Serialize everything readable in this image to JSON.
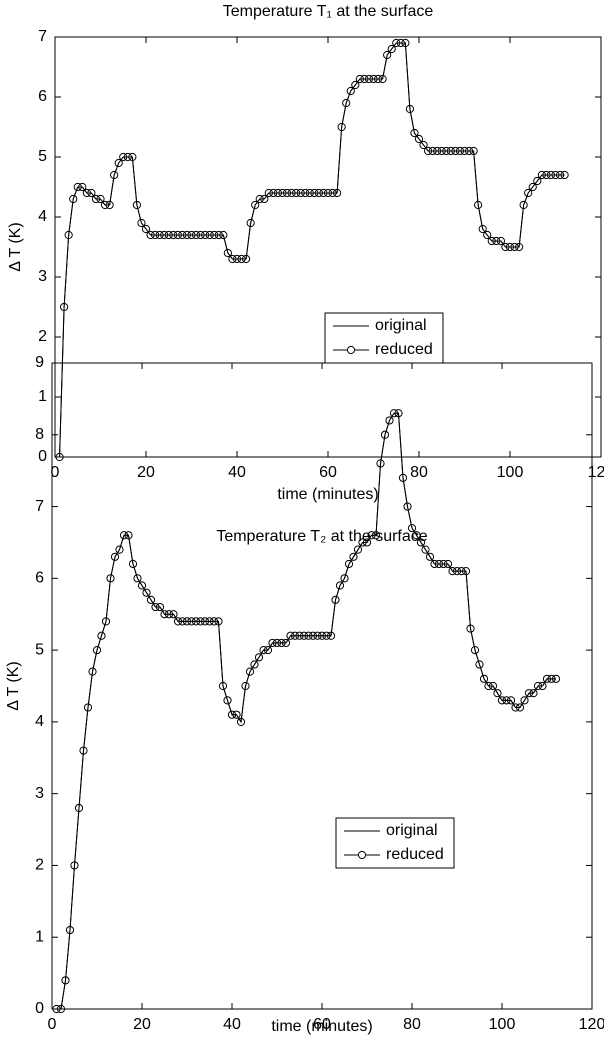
{
  "chart_data": [
    {
      "type": "line",
      "title": "Temperature T₁ at the surface",
      "x_label": "time (minutes)",
      "y_label": "Δ T (K)",
      "xlim": [
        0,
        120
      ],
      "xticks": [
        0,
        20,
        40,
        60,
        80,
        100,
        120
      ],
      "ylim": [
        0,
        7
      ],
      "yticks": [
        0,
        1,
        2,
        3,
        4,
        5,
        6,
        7
      ],
      "grid": false,
      "x": [
        1,
        2,
        3,
        4,
        5,
        6,
        7,
        8,
        9,
        10,
        11,
        12,
        13,
        14,
        15,
        16,
        17,
        18,
        19,
        20,
        21,
        22,
        23,
        24,
        25,
        26,
        27,
        28,
        29,
        30,
        31,
        32,
        33,
        34,
        35,
        36,
        37,
        38,
        39,
        40,
        41,
        42,
        43,
        44,
        45,
        46,
        47,
        48,
        49,
        50,
        51,
        52,
        53,
        54,
        55,
        56,
        57,
        58,
        59,
        60,
        61,
        62,
        63,
        64,
        65,
        66,
        67,
        68,
        69,
        70,
        71,
        72,
        73,
        74,
        75,
        76,
        77,
        78,
        79,
        80,
        81,
        82,
        83,
        84,
        85,
        86,
        87,
        88,
        89,
        90,
        91,
        92,
        93,
        94,
        95,
        96,
        97,
        98,
        99,
        100,
        101,
        102,
        103,
        104,
        105,
        106,
        107,
        108,
        109,
        110,
        111,
        112
      ],
      "series": [
        {
          "name": "original",
          "color": "#000000",
          "values": [
            0,
            2.5,
            3.7,
            4.3,
            4.5,
            4.5,
            4.4,
            4.4,
            4.3,
            4.3,
            4.2,
            4.2,
            4.7,
            4.9,
            5,
            5,
            5,
            4.2,
            3.9,
            3.8,
            3.7,
            3.7,
            3.7,
            3.7,
            3.7,
            3.7,
            3.7,
            3.7,
            3.7,
            3.7,
            3.7,
            3.7,
            3.7,
            3.7,
            3.7,
            3.7,
            3.7,
            3.4,
            3.3,
            3.3,
            3.3,
            3.3,
            3.9,
            4.2,
            4.3,
            4.3,
            4.4,
            4.4,
            4.4,
            4.4,
            4.4,
            4.4,
            4.4,
            4.4,
            4.4,
            4.4,
            4.4,
            4.4,
            4.4,
            4.4,
            4.4,
            4.4,
            5.5,
            5.9,
            6.1,
            6.2,
            6.3,
            6.3,
            6.3,
            6.3,
            6.3,
            6.3,
            6.7,
            6.8,
            6.9,
            6.9,
            6.9,
            5.8,
            5.4,
            5.3,
            5.2,
            5.1,
            5.1,
            5.1,
            5.1,
            5.1,
            5.1,
            5.1,
            5.1,
            5.1,
            5.1,
            5.1,
            4.2,
            3.8,
            3.7,
            3.6,
            3.6,
            3.6,
            3.5,
            3.5,
            3.5,
            3.5,
            4.2,
            4.4,
            4.5,
            4.6,
            4.7,
            4.7,
            4.7,
            4.7,
            4.7,
            4.7
          ]
        },
        {
          "name": "reduced",
          "color": "#000000",
          "marker": "o",
          "values": [
            0,
            2.5,
            3.7,
            4.3,
            4.5,
            4.5,
            4.4,
            4.4,
            4.3,
            4.3,
            4.2,
            4.2,
            4.7,
            4.9,
            5,
            5,
            5,
            4.2,
            3.9,
            3.8,
            3.7,
            3.7,
            3.7,
            3.7,
            3.7,
            3.7,
            3.7,
            3.7,
            3.7,
            3.7,
            3.7,
            3.7,
            3.7,
            3.7,
            3.7,
            3.7,
            3.7,
            3.4,
            3.3,
            3.3,
            3.3,
            3.3,
            3.9,
            4.2,
            4.3,
            4.3,
            4.4,
            4.4,
            4.4,
            4.4,
            4.4,
            4.4,
            4.4,
            4.4,
            4.4,
            4.4,
            4.4,
            4.4,
            4.4,
            4.4,
            4.4,
            4.4,
            5.5,
            5.9,
            6.1,
            6.2,
            6.3,
            6.3,
            6.3,
            6.3,
            6.3,
            6.3,
            6.7,
            6.8,
            6.9,
            6.9,
            6.9,
            5.8,
            5.4,
            5.3,
            5.2,
            5.1,
            5.1,
            5.1,
            5.1,
            5.1,
            5.1,
            5.1,
            5.1,
            5.1,
            5.1,
            5.1,
            4.2,
            3.8,
            3.7,
            3.6,
            3.6,
            3.6,
            3.5,
            3.5,
            3.5,
            3.5,
            4.2,
            4.4,
            4.5,
            4.6,
            4.7,
            4.7,
            4.7,
            4.7,
            4.7,
            4.7
          ]
        }
      ]
    },
    {
      "type": "line",
      "title": "Temperature T₂ at the surface",
      "x_label": "time (minutes)",
      "y_label": "Δ T (K)",
      "xlim": [
        0,
        120
      ],
      "xticks": [
        0,
        20,
        40,
        60,
        80,
        100,
        120
      ],
      "ylim": [
        0,
        9
      ],
      "yticks": [
        0,
        1,
        2,
        3,
        4,
        5,
        6,
        7,
        8,
        9
      ],
      "grid": false,
      "x": [
        1,
        2,
        3,
        4,
        5,
        6,
        7,
        8,
        9,
        10,
        11,
        12,
        13,
        14,
        15,
        16,
        17,
        18,
        19,
        20,
        21,
        22,
        23,
        24,
        25,
        26,
        27,
        28,
        29,
        30,
        31,
        32,
        33,
        34,
        35,
        36,
        37,
        38,
        39,
        40,
        41,
        42,
        43,
        44,
        45,
        46,
        47,
        48,
        49,
        50,
        51,
        52,
        53,
        54,
        55,
        56,
        57,
        58,
        59,
        60,
        61,
        62,
        63,
        64,
        65,
        66,
        67,
        68,
        69,
        70,
        71,
        72,
        73,
        74,
        75,
        76,
        77,
        78,
        79,
        80,
        81,
        82,
        83,
        84,
        85,
        86,
        87,
        88,
        89,
        90,
        91,
        92,
        93,
        94,
        95,
        96,
        97,
        98,
        99,
        100,
        101,
        102,
        103,
        104,
        105,
        106,
        107,
        108,
        109,
        110,
        111,
        112
      ],
      "series": [
        {
          "name": "original",
          "color": "#000000",
          "values": [
            0,
            0,
            0.4,
            1.1,
            2,
            2.8,
            3.6,
            4.2,
            4.7,
            5,
            5.2,
            5.4,
            6,
            6.3,
            6.4,
            6.6,
            6.6,
            6.2,
            6,
            5.9,
            5.8,
            5.7,
            5.6,
            5.6,
            5.5,
            5.5,
            5.5,
            5.4,
            5.4,
            5.4,
            5.4,
            5.4,
            5.4,
            5.4,
            5.4,
            5.4,
            5.4,
            4.5,
            4.3,
            4.1,
            4.1,
            4,
            4.5,
            4.7,
            4.8,
            4.9,
            5,
            5,
            5.1,
            5.1,
            5.1,
            5.1,
            5.2,
            5.2,
            5.2,
            5.2,
            5.2,
            5.2,
            5.2,
            5.2,
            5.2,
            5.2,
            5.7,
            5.9,
            6,
            6.2,
            6.3,
            6.4,
            6.5,
            6.5,
            6.6,
            6.6,
            7.6,
            8,
            8.2,
            8.3,
            8.3,
            7.4,
            7,
            6.7,
            6.6,
            6.5,
            6.4,
            6.3,
            6.2,
            6.2,
            6.2,
            6.2,
            6.1,
            6.1,
            6.1,
            6.1,
            5.3,
            5,
            4.8,
            4.6,
            4.5,
            4.5,
            4.4,
            4.3,
            4.3,
            4.3,
            4.2,
            4.2,
            4.3,
            4.4,
            4.4,
            4.5,
            4.5,
            4.6,
            4.6,
            4.6
          ]
        },
        {
          "name": "reduced",
          "color": "#000000",
          "marker": "o",
          "values": [
            0,
            0,
            0.4,
            1.1,
            2,
            2.8,
            3.6,
            4.2,
            4.7,
            5,
            5.2,
            5.4,
            6,
            6.3,
            6.4,
            6.6,
            6.6,
            6.2,
            6,
            5.9,
            5.8,
            5.7,
            5.6,
            5.6,
            5.5,
            5.5,
            5.5,
            5.4,
            5.4,
            5.4,
            5.4,
            5.4,
            5.4,
            5.4,
            5.4,
            5.4,
            5.4,
            4.5,
            4.3,
            4.1,
            4.1,
            4,
            4.5,
            4.7,
            4.8,
            4.9,
            5,
            5,
            5.1,
            5.1,
            5.1,
            5.1,
            5.2,
            5.2,
            5.2,
            5.2,
            5.2,
            5.2,
            5.2,
            5.2,
            5.2,
            5.2,
            5.7,
            5.9,
            6,
            6.2,
            6.3,
            6.4,
            6.5,
            6.5,
            6.6,
            6.6,
            7.6,
            8,
            8.2,
            8.3,
            8.3,
            7.4,
            7,
            6.7,
            6.6,
            6.5,
            6.4,
            6.3,
            6.2,
            6.2,
            6.2,
            6.2,
            6.1,
            6.1,
            6.1,
            6.1,
            5.3,
            5,
            4.8,
            4.6,
            4.5,
            4.5,
            4.4,
            4.3,
            4.3,
            4.3,
            4.2,
            4.2,
            4.3,
            4.4,
            4.4,
            4.5,
            4.5,
            4.6,
            4.6,
            4.6
          ]
        }
      ]
    }
  ]
}
